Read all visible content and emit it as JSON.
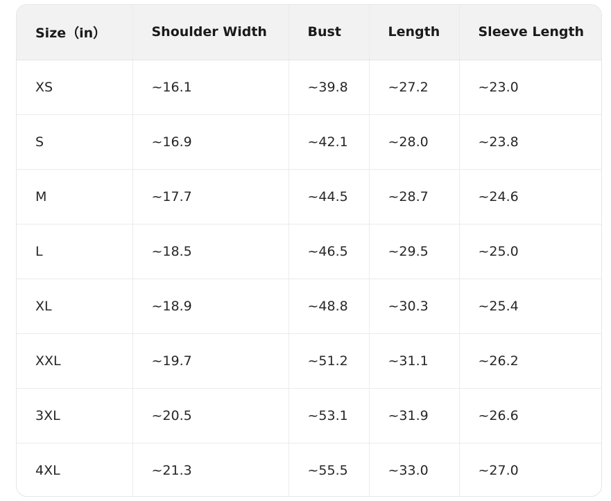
{
  "table": {
    "headers": [
      "Size（in）",
      "Shoulder Width",
      "Bust",
      "Length",
      "Sleeve Length"
    ],
    "rows": [
      [
        "XS",
        "~16.1",
        "~39.8",
        "~27.2",
        "~23.0"
      ],
      [
        "S",
        "~16.9",
        "~42.1",
        "~28.0",
        "~23.8"
      ],
      [
        "M",
        "~17.7",
        "~44.5",
        "~28.7",
        "~24.6"
      ],
      [
        "L",
        "~18.5",
        "~46.5",
        "~29.5",
        "~25.0"
      ],
      [
        "XL",
        "~18.9",
        "~48.8",
        "~30.3",
        "~25.4"
      ],
      [
        "XXL",
        "~19.7",
        "~51.2",
        "~31.1",
        "~26.2"
      ],
      [
        "3XL",
        "~20.5",
        "~53.1",
        "~31.9",
        "~26.6"
      ],
      [
        "4XL",
        "~21.3",
        "~55.5",
        "~33.0",
        "~27.0"
      ]
    ]
  }
}
